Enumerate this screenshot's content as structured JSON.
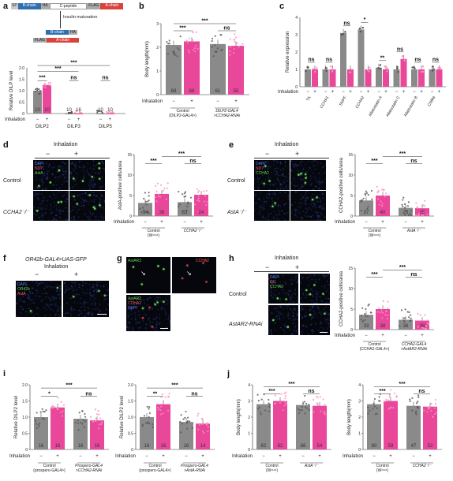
{
  "panels": {
    "a": {
      "label": "a",
      "seq": [
        "SP",
        "B-chain",
        "HA",
        "C-peptide",
        "FLAG",
        "A-chain"
      ],
      "maturation": "Insulin maturation",
      "ylabel": "Relative DILP level",
      "cats": [
        "DILP2",
        "DILP3",
        "DILP5"
      ],
      "n": [
        "10",
        "10",
        "10",
        "16",
        "10",
        "10"
      ],
      "means": [
        1.0,
        1.25,
        0.0,
        0.0,
        0.0,
        0.0
      ],
      "inh": "Inhalation",
      "sig": [
        "***",
        "***",
        "***",
        "ns",
        "ns"
      ],
      "ticks": [
        "0",
        "0.5",
        "1.0",
        "1.5",
        "2.0"
      ]
    },
    "b": {
      "label": "b",
      "ylabel": "Body length(mm)",
      "ticks": [
        "0",
        "1",
        "2",
        "3"
      ],
      "n": [
        "68",
        "68",
        "61",
        "55"
      ],
      "means": [
        2.8,
        3.0,
        2.85,
        2.75
      ],
      "sig": [
        "***",
        "***",
        "ns"
      ],
      "inh": "Inhalation",
      "g1": "Control",
      "g1b": "(DILP2-GAL4>)",
      "g2": "DILP2-GAL4",
      "g2b": ">CCHA2-RNAi"
    },
    "c": {
      "label": "c",
      "ylabel": "Relative expression",
      "ticks": [
        "0",
        "1",
        "2",
        "3",
        "4"
      ],
      "genes": [
        "TK",
        "CCHA1",
        "SNPF",
        "CCHA2",
        "Allatostatin A",
        "Allatostatin C",
        "Allatostatin B",
        "CNMa"
      ],
      "means": [
        1.0,
        1.0,
        1.0,
        1.0,
        3.1,
        1.0,
        3.3,
        1.0,
        1.1,
        1.0,
        1.0,
        1.6,
        1.0,
        1.0,
        1.0,
        1.0
      ],
      "sig": [
        "ns",
        "ns",
        "ns",
        "*",
        "**",
        "ns",
        "ns",
        "ns"
      ],
      "inh": "Inhalation"
    },
    "d": {
      "label": "d",
      "title": "Inhalation",
      "minus": "−",
      "plus": "+",
      "rows": [
        "Control",
        "CCHA2⁻/⁻"
      ],
      "channels": [
        "DAPI",
        "ND7",
        "AstA"
      ],
      "ylabel": "AstA-positive cells/area",
      "ticks": [
        "0",
        "5",
        "10",
        "15"
      ],
      "n": [
        "34",
        "38",
        "33",
        "24"
      ],
      "means": [
        3.2,
        5.4,
        3.4,
        5.2
      ],
      "sig": [
        "***",
        "***",
        "ns"
      ],
      "inh": "Inhalation",
      "g1": "Control",
      "g1b": "(W¹¹¹⁸)",
      "g2": "CCHA2⁻/⁻"
    },
    "e": {
      "label": "e",
      "title": "Inhalation",
      "minus": "−",
      "plus": "+",
      "rows": [
        "Control",
        "AstA⁻/⁻"
      ],
      "channels": [
        "DAPI",
        "ND7",
        "CCHA2"
      ],
      "ylabel": "CCHA2-positive cells/area",
      "ticks": [
        "0",
        "5",
        "10",
        "15"
      ],
      "n": [
        "37",
        "40",
        "25",
        "25"
      ],
      "means": [
        3.8,
        5.0,
        2.0,
        1.9
      ],
      "sig": [
        "***",
        "***",
        "ns"
      ],
      "inh": "Inhalation",
      "g1": "Control",
      "g1b": "(W¹¹¹⁸)",
      "g2": "AstA⁻/⁻"
    },
    "f": {
      "label": "f",
      "title": "OR42b-GAL4>UAS-GFP",
      "sub": "Inhalation",
      "minus": "−",
      "plus": "+",
      "channels": [
        "DAPI",
        "OR42b",
        "AstA"
      ]
    },
    "g": {
      "label": "g",
      "ch1": "AstAR2",
      "ch2": "CCHA2",
      "ch3a": "AstAR2",
      "ch3b": "CCHA2",
      "ch3c": "DAPI"
    },
    "h": {
      "label": "h",
      "title": "Inhalation",
      "minus": "−",
      "plus": "+",
      "rows": [
        "Control",
        "AstAR2-RNAi"
      ],
      "channels": [
        "DAPI",
        "EE",
        "CCHA2"
      ],
      "ylabel": "CCHA2-positive cells/area",
      "ticks": [
        "0",
        "5",
        "10",
        "15"
      ],
      "n": [
        "33",
        "38",
        "36",
        "38"
      ],
      "means": [
        3.6,
        5.0,
        2.4,
        2.2
      ],
      "sig": [
        "***",
        "***",
        "ns"
      ],
      "inh": "Inhalation",
      "g1": "Control",
      "g1b": "(CCHA2-GAL4>)",
      "g2": "CCHA2-GAL4",
      "g2b": ">AstAR2-RNAi"
    },
    "i": {
      "label": "i",
      "left": {
        "ylabel": "Relative DILP2 level",
        "ticks": [
          "0",
          "0.5",
          "1.0",
          "1.5",
          "2.0"
        ],
        "n": [
          "16",
          "16",
          "16",
          "16"
        ],
        "means": [
          1.0,
          1.3,
          0.95,
          0.9
        ],
        "sig": [
          "*",
          "***",
          "ns"
        ],
        "g1": "Control",
        "g1b": "(prospero-GAL4>)",
        "g2": "Prospero-GAL4",
        "g2b": ">CCHA2-RNAi"
      },
      "right": {
        "ylabel": "Relative DILP2 level",
        "ticks": [
          "0",
          "0.5",
          "1.0",
          "1.5",
          "2.0"
        ],
        "n": [
          "16",
          "16",
          "16",
          "14"
        ],
        "means": [
          1.0,
          1.4,
          0.85,
          0.8
        ],
        "sig": [
          "**",
          "***",
          "ns"
        ],
        "g1": "Control",
        "g1b": "(prospero-GAL4>)",
        "g2": "Prospero-GAL4",
        "g2b": ">AstA-RNAi"
      },
      "inh": "Inhalation"
    },
    "j": {
      "label": "j",
      "left": {
        "ylabel": "Body length(mm)",
        "ticks": [
          "0",
          "1",
          "2",
          "3",
          "4"
        ],
        "n": [
          "62",
          "62",
          "68",
          "54"
        ],
        "means": [
          2.8,
          3.0,
          2.75,
          2.7
        ],
        "sig": [
          "***",
          "***",
          "ns"
        ],
        "g1": "Control",
        "g1b": "(W¹¹¹⁸)",
        "g2": "AstA⁻/⁻"
      },
      "right": {
        "ylabel": "Body length(mm)",
        "ticks": [
          "0",
          "1",
          "2",
          "3",
          "4"
        ],
        "n": [
          "60",
          "59",
          "47",
          "52"
        ],
        "means": [
          2.8,
          3.0,
          2.7,
          2.65
        ],
        "sig": [
          "***",
          "***",
          "ns"
        ],
        "g1": "Control",
        "g1b": "(W¹¹¹⁸)",
        "g2": "CCHA2⁻/⁻"
      },
      "inh": "Inhalation"
    }
  },
  "colors": {
    "gray": "#8a8a8a",
    "pink": "#e8479a",
    "pinkLight": "#f5a7cf",
    "blue": "#2f6fb0",
    "red": "#d9433c",
    "green": "#6ad14a",
    "dapi": "#3a55c8"
  }
}
